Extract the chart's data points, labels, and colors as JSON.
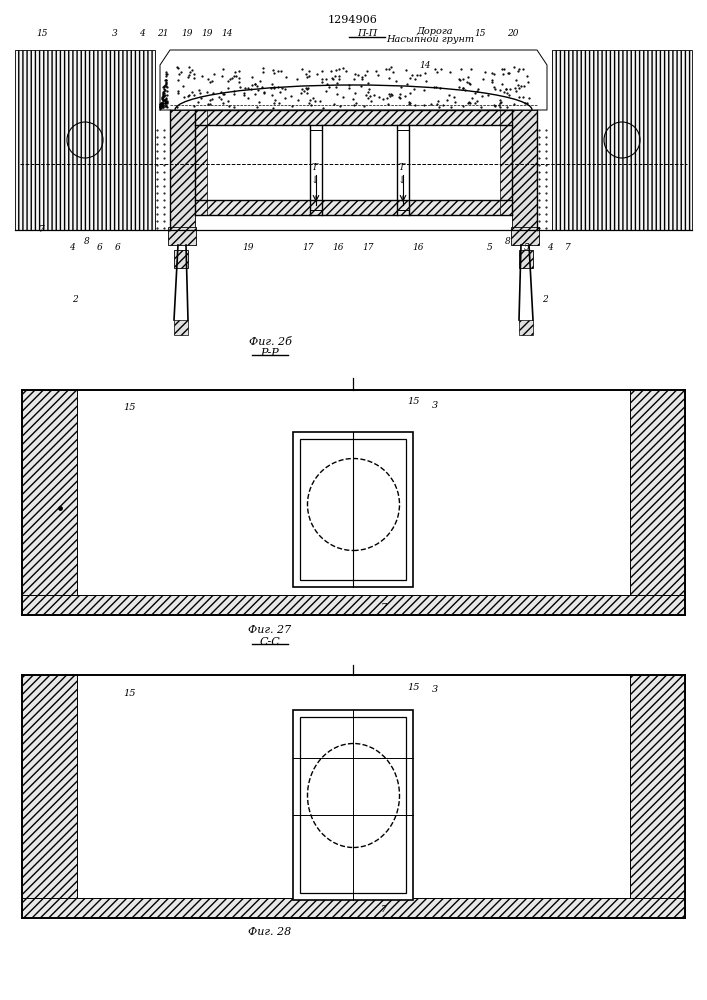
{
  "patent_number": "1294906",
  "fig26_label": "Фиг. 2б",
  "fig27_label": "Фиг. 27",
  "fig28_label": "Фиг. 28",
  "section_pp": "П-П",
  "section_rr": "Р-Р",
  "section_ss": "С-С",
  "label_doroga": "Дорога",
  "label_nasypnoy": "Насыпной грунт",
  "bg_color": "#ffffff"
}
